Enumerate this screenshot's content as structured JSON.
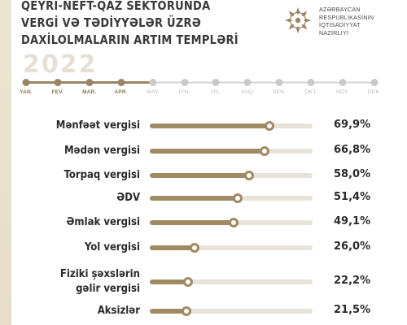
{
  "title_lines": [
    "QEYRİ-NEFT-QAZ SEKTORUNDA",
    "VERGİ VƏ TƏDİYYƏLƏR ÜZRƏ",
    "DAXİLOLMALARIN ARTIM TEMPLƏRİ"
  ],
  "ministry_lines": [
    "AZƏRBAYCAN",
    "RESPUBLİKASININ",
    "İQTİSADİYYAT",
    "NAZİRLİYİ"
  ],
  "year": "2022",
  "months": [
    "YAN.",
    "FEV.",
    "MAR.",
    "APR.",
    "MAY",
    "İYN.",
    "İYL.",
    "AVQ.",
    "SEN.",
    "OKT.",
    "NOY.",
    "DEK."
  ],
  "active_months": 4,
  "colors": {
    "accent": "#a08a62",
    "track": "#e8e3da",
    "inactive": "#c9c9c9",
    "stripe": "#ece4d3"
  },
  "chart_data": {
    "type": "bar",
    "categories": [
      "Mənfəət vergisi",
      "Mədən vergisi",
      "Torpaq vergisi",
      "ƏDV",
      "Əmlak vergisi",
      "Yol vergisi",
      "Fiziki şəxslərin\ngəlir vergisi",
      "Aksizlər"
    ],
    "values": [
      69.9,
      66.8,
      58.0,
      51.4,
      49.1,
      26.0,
      22.2,
      21.5
    ],
    "value_labels": [
      "69,9%",
      "66,8%",
      "58,0%",
      "51,4%",
      "49,1%",
      "26,0%",
      "22,2%",
      "21,5%"
    ],
    "xlim": [
      0,
      95
    ]
  }
}
